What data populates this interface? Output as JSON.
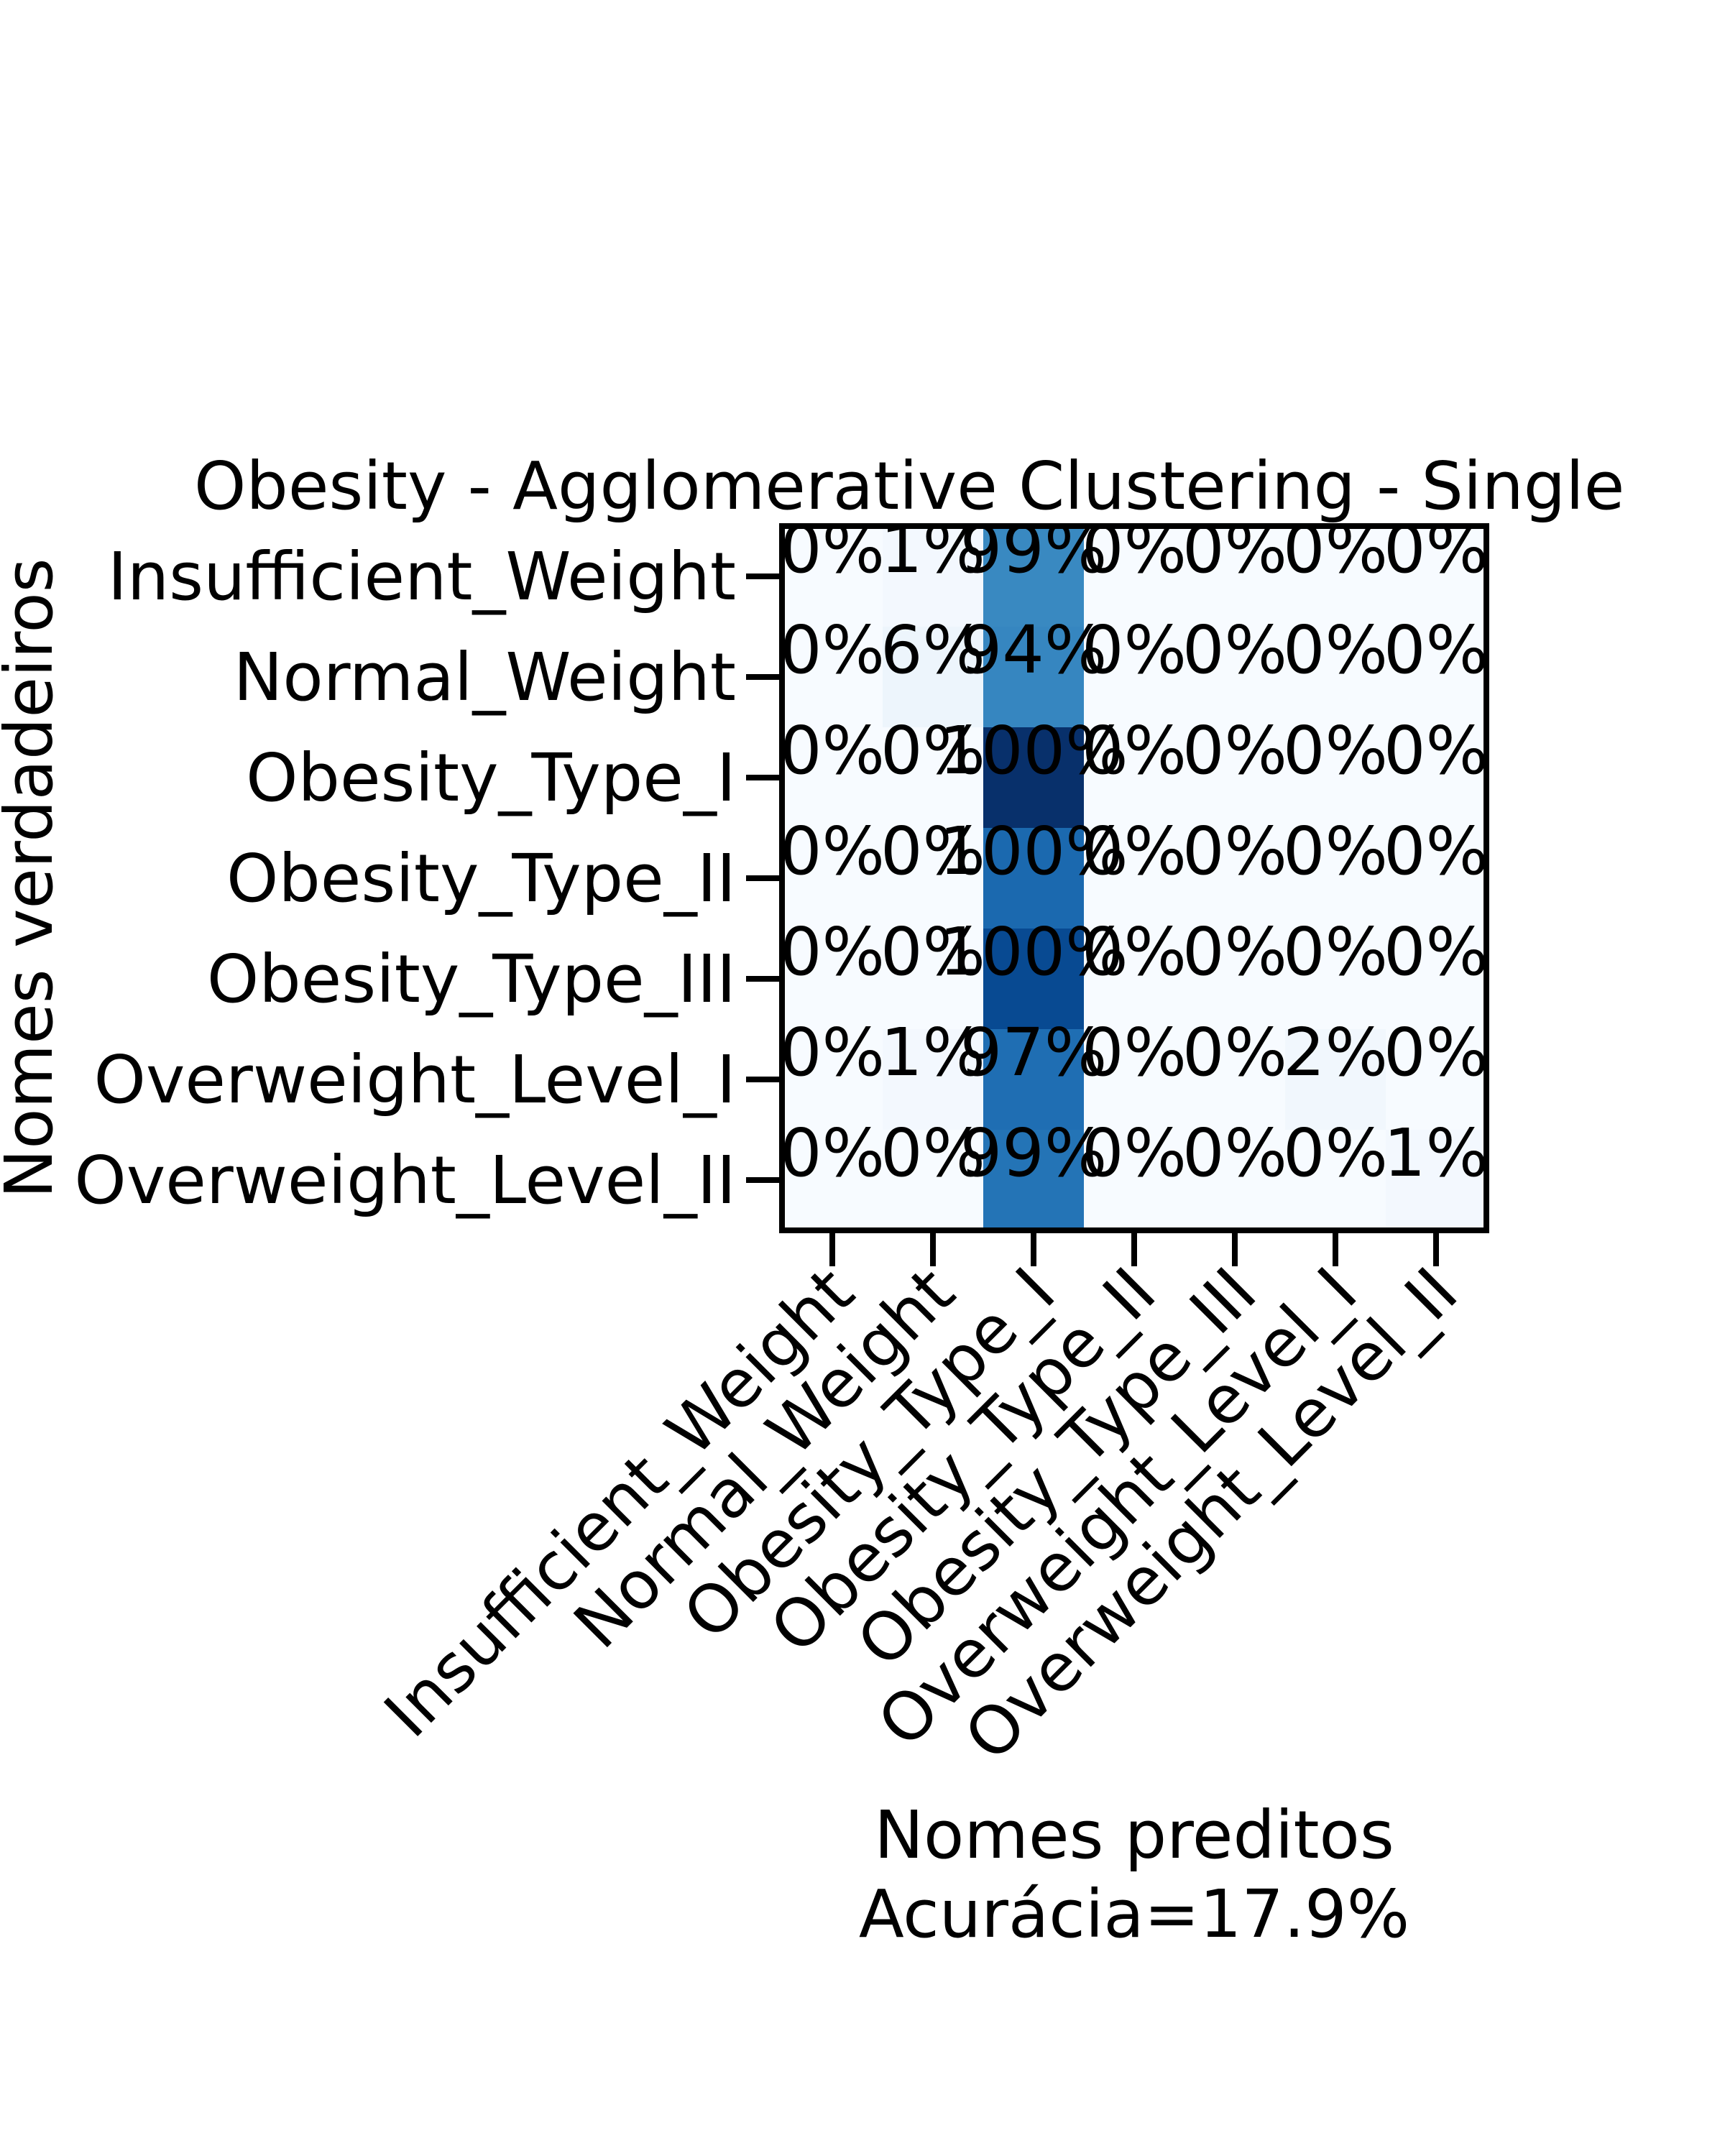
{
  "chart_data": {
    "type": "heatmap",
    "title": "Obesity - Agglomerative Clustering - Single",
    "ylabel": "Nomes verdadeiros",
    "xlabel": "Nomes preditos",
    "accuracy_label": "Acurácia=17.9%",
    "row_labels": [
      "Insufficient_Weight",
      "Normal_Weight",
      "Obesity_Type_I",
      "Obesity_Type_II",
      "Obesity_Type_III",
      "Overweight_Level_I",
      "Overweight_Level_II"
    ],
    "col_labels": [
      "Insufficient_Weight",
      "Normal_Weight",
      "Obesity_Type_I",
      "Obesity_Type_II",
      "Obesity_Type_III",
      "Overweight_Level_I",
      "Overweight_Level_II"
    ],
    "cell_labels": [
      [
        "0%",
        "1%",
        "99%",
        "0%",
        "0%",
        "0%",
        "0%"
      ],
      [
        "0%",
        "6%",
        "94%",
        "0%",
        "0%",
        "0%",
        "0%"
      ],
      [
        "0%",
        "0%",
        "100%",
        "0%",
        "0%",
        "0%",
        "0%"
      ],
      [
        "0%",
        "0%",
        "100%",
        "0%",
        "0%",
        "0%",
        "0%"
      ],
      [
        "0%",
        "0%",
        "100%",
        "0%",
        "0%",
        "0%",
        "0%"
      ],
      [
        "0%",
        "1%",
        "97%",
        "0%",
        "0%",
        "2%",
        "0%"
      ],
      [
        "0%",
        "0%",
        "99%",
        "0%",
        "0%",
        "0%",
        "1%"
      ]
    ],
    "color_intensity": [
      [
        0.0,
        0.02,
        0.66,
        0.0,
        0.0,
        0.0,
        0.0
      ],
      [
        0.0,
        0.05,
        0.67,
        0.0,
        0.0,
        0.0,
        0.0
      ],
      [
        0.0,
        0.0,
        1.0,
        0.0,
        0.0,
        0.0,
        0.0
      ],
      [
        0.0,
        0.0,
        0.78,
        0.0,
        0.0,
        0.0,
        0.0
      ],
      [
        0.0,
        0.0,
        0.9,
        0.0,
        0.0,
        0.0,
        0.0
      ],
      [
        0.0,
        0.02,
        0.76,
        0.0,
        0.0,
        0.03,
        0.0
      ],
      [
        0.0,
        0.0,
        0.74,
        0.0,
        0.0,
        0.0,
        0.02
      ]
    ],
    "colormap": "Blues",
    "colormap_stops": [
      "#f7fbff",
      "#deebf7",
      "#c6dbef",
      "#9ecae1",
      "#6baed6",
      "#4292c6",
      "#2171b5",
      "#08519c",
      "#08306b"
    ],
    "grid": false
  }
}
